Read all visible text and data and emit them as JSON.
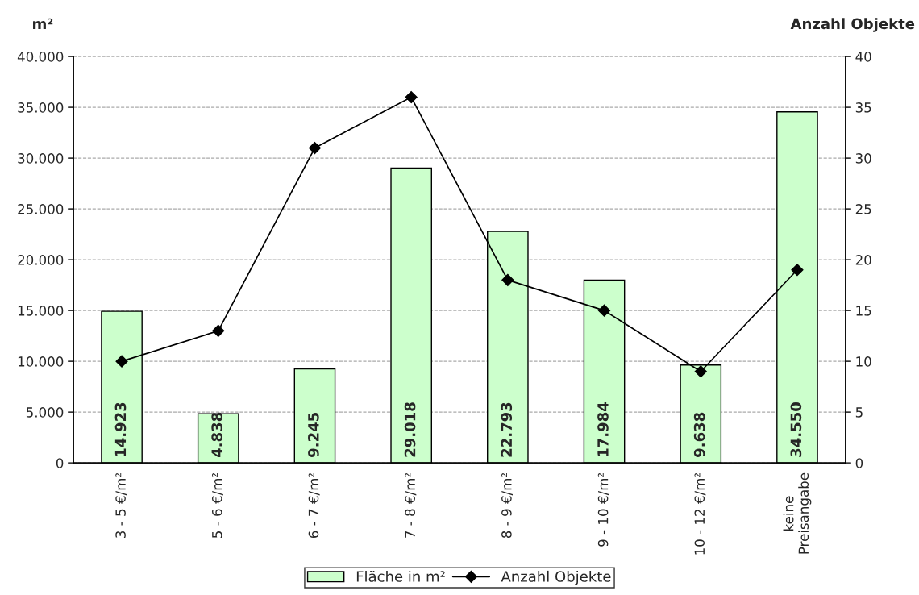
{
  "chart_data": {
    "type": "bar",
    "ylabel": "m²",
    "y2label": "Anzahl Objekte",
    "categories": [
      "3 - 5 €/m²",
      "5 - 6 €/m²",
      "6 - 7 €/m²",
      "7 - 8 €/m²",
      "8 - 9 €/m²",
      "9 - 10 €/m²",
      "10 - 12 €/m²",
      "keine\nPreisangabe"
    ],
    "series": [
      {
        "name": "Fläche in m²",
        "color": "#ccffcc",
        "values": [
          14923,
          4838,
          9245,
          29018,
          22793,
          17984,
          9638,
          34550
        ],
        "value_labels": [
          "14.923",
          "4.838",
          "9.245",
          "29.018",
          "22.793",
          "17.984",
          "9.638",
          "34.550"
        ]
      },
      {
        "name": "Anzahl Objekte",
        "type": "line",
        "axis": "y2",
        "color": "#000000",
        "marker": "diamond",
        "line_style": "solid",
        "values": [
          10,
          13,
          31,
          36,
          18,
          15,
          9,
          19
        ]
      }
    ],
    "ylim": [
      0,
      40000
    ],
    "yticks": [
      {
        "value": 0,
        "label": "0"
      },
      {
        "value": 5000,
        "label": "5.000"
      },
      {
        "value": 10000,
        "label": "10.000"
      },
      {
        "value": 15000,
        "label": "15.000"
      },
      {
        "value": 20000,
        "label": "20.000"
      },
      {
        "value": 25000,
        "label": "25.000"
      },
      {
        "value": 30000,
        "label": "30.000"
      },
      {
        "value": 35000,
        "label": "35.000"
      },
      {
        "value": 40000,
        "label": "40.000"
      }
    ],
    "y2lim": [
      0,
      40
    ],
    "y2ticks": [
      0,
      5,
      10,
      15,
      20,
      25,
      30,
      35,
      40
    ],
    "grid": "y",
    "legend": "bottom"
  }
}
